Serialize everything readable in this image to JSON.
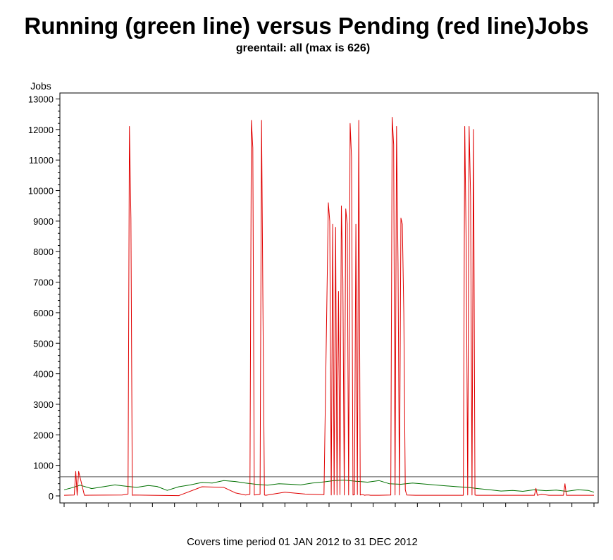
{
  "title": "Running (green line) versus Pending (red line)Jobs",
  "subtitle": "greentail: all (max is 626)",
  "footer": "Covers time period 01 JAN 2012 to 31 DEC 2012",
  "chart_data": {
    "type": "line",
    "ylabel": "Jobs",
    "xlabel": "",
    "ylim": [
      0,
      13300
    ],
    "yticks": [
      0,
      1000,
      2000,
      3000,
      4000,
      5000,
      6000,
      7000,
      8000,
      9000,
      10000,
      11000,
      12000,
      13000
    ],
    "xlim": [
      "2012-01-01",
      "2012-12-31"
    ],
    "x_tick_count": 24,
    "grid": false,
    "legend": "none",
    "reference_line": {
      "y": 626
    },
    "colors": {
      "running": "#007000",
      "pending": "#e00000",
      "reference": "#555555",
      "axis": "#000000"
    },
    "series": [
      {
        "color": "#007000",
        "x": [
          "2012-01-01",
          "2012-01-06",
          "2012-01-12",
          "2012-01-20",
          "2012-01-28",
          "2012-02-05",
          "2012-02-12",
          "2012-02-20",
          "2012-02-28",
          "2012-03-05",
          "2012-03-12",
          "2012-03-20",
          "2012-03-28",
          "2012-04-05",
          "2012-04-12",
          "2012-04-20",
          "2012-04-28",
          "2012-05-05",
          "2012-05-12",
          "2012-05-20",
          "2012-05-28",
          "2012-06-05",
          "2012-06-12",
          "2012-06-20",
          "2012-06-28",
          "2012-07-05",
          "2012-07-12",
          "2012-07-20",
          "2012-07-28",
          "2012-08-05",
          "2012-08-12",
          "2012-08-20",
          "2012-08-28",
          "2012-09-05",
          "2012-09-12",
          "2012-09-20",
          "2012-09-28",
          "2012-10-05",
          "2012-10-12",
          "2012-10-20",
          "2012-10-28",
          "2012-11-05",
          "2012-11-12",
          "2012-11-20",
          "2012-11-28",
          "2012-12-05",
          "2012-12-12",
          "2012-12-20",
          "2012-12-27",
          "2012-12-31"
        ],
        "y": [
          200,
          260,
          350,
          240,
          300,
          360,
          320,
          280,
          340,
          310,
          180,
          300,
          360,
          440,
          420,
          500,
          470,
          420,
          380,
          350,
          400,
          380,
          360,
          420,
          460,
          500,
          520,
          480,
          450,
          500,
          400,
          380,
          420,
          390,
          360,
          330,
          300,
          280,
          240,
          200,
          160,
          180,
          150,
          200,
          170,
          190,
          150,
          200,
          180,
          120
        ]
      },
      {
        "color": "#e00000",
        "x": [
          "2012-01-01",
          "2012-01-08",
          "2012-01-09",
          "2012-01-10",
          "2012-01-11",
          "2012-01-15",
          "2012-02-10",
          "2012-02-14",
          "2012-02-15",
          "2012-02-16",
          "2012-02-17",
          "2012-02-18",
          "2012-03-01",
          "2012-03-20",
          "2012-04-05",
          "2012-04-20",
          "2012-04-28",
          "2012-05-05",
          "2012-05-08",
          "2012-05-09",
          "2012-05-10",
          "2012-05-11",
          "2012-05-15",
          "2012-05-16",
          "2012-05-17",
          "2012-05-18",
          "2012-05-19",
          "2012-06-01",
          "2012-06-15",
          "2012-06-28",
          "2012-07-01",
          "2012-07-02",
          "2012-07-03",
          "2012-07-04",
          "2012-07-05",
          "2012-07-06",
          "2012-07-07",
          "2012-07-08",
          "2012-07-09",
          "2012-07-10",
          "2012-07-11",
          "2012-07-12",
          "2012-07-13",
          "2012-07-14",
          "2012-07-15",
          "2012-07-16",
          "2012-07-17",
          "2012-07-18",
          "2012-07-19",
          "2012-07-20",
          "2012-07-21",
          "2012-07-22",
          "2012-07-23",
          "2012-07-24",
          "2012-07-25",
          "2012-07-26",
          "2012-07-27",
          "2012-07-28",
          "2012-07-29",
          "2012-07-30",
          "2012-08-05",
          "2012-08-13",
          "2012-08-14",
          "2012-08-15",
          "2012-08-16",
          "2012-08-17",
          "2012-08-18",
          "2012-08-19",
          "2012-08-20",
          "2012-08-21",
          "2012-08-22",
          "2012-08-23",
          "2012-08-24",
          "2012-08-30",
          "2012-09-05",
          "2012-09-15",
          "2012-10-01",
          "2012-10-02",
          "2012-10-03",
          "2012-10-04",
          "2012-10-05",
          "2012-10-06",
          "2012-10-07",
          "2012-10-08",
          "2012-10-09",
          "2012-10-10",
          "2012-10-11",
          "2012-10-12",
          "2012-10-13",
          "2012-11-01",
          "2012-11-20",
          "2012-11-21",
          "2012-11-22",
          "2012-11-25",
          "2012-11-30",
          "2012-12-10",
          "2012-12-11",
          "2012-12-12",
          "2012-12-20",
          "2012-12-31"
        ],
        "y": [
          20,
          30,
          800,
          20,
          800,
          20,
          30,
          60,
          12100,
          9100,
          20,
          30,
          20,
          10,
          300,
          280,
          100,
          30,
          50,
          12300,
          11400,
          30,
          50,
          12300,
          5800,
          30,
          20,
          120,
          60,
          40,
          9600,
          9000,
          30,
          8900,
          40,
          8800,
          30,
          6700,
          40,
          9500,
          7100,
          30,
          9400,
          8900,
          30,
          12200,
          11100,
          30,
          40,
          8900,
          40,
          12300,
          30,
          40,
          40,
          20,
          30,
          30,
          30,
          20,
          20,
          30,
          12400,
          11500,
          30,
          12100,
          7600,
          30,
          9100,
          8900,
          6000,
          200,
          30,
          20,
          20,
          20,
          20,
          20,
          12100,
          8100,
          30,
          12100,
          9800,
          30,
          12000,
          30,
          20,
          20,
          20,
          20,
          20,
          250,
          20,
          50,
          20,
          20,
          400,
          20,
          20,
          20
        ]
      }
    ]
  }
}
